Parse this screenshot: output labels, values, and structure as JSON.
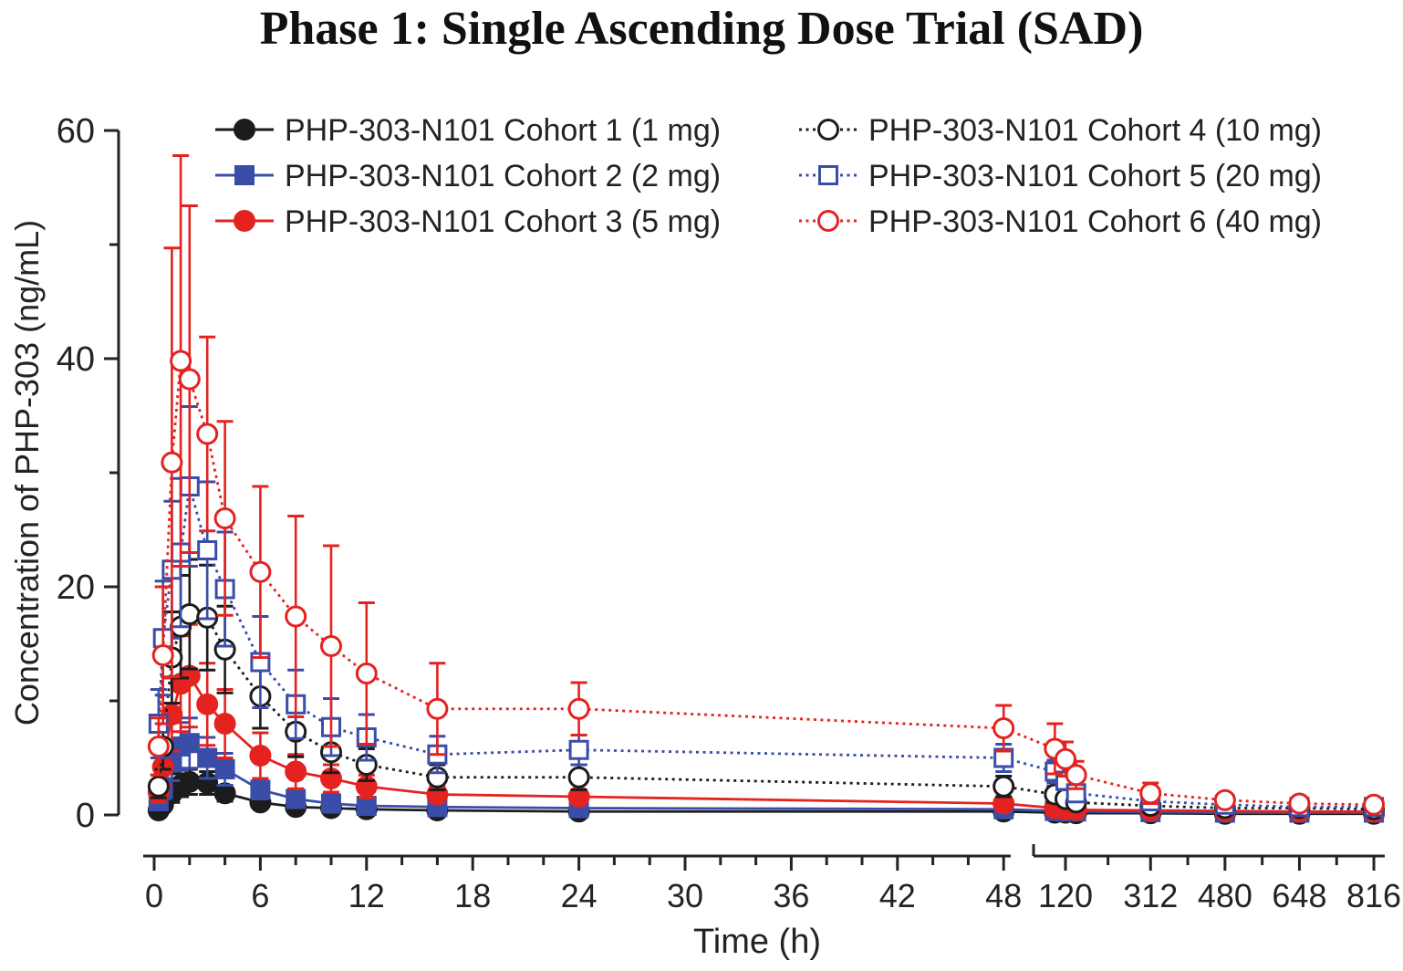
{
  "chart_data": {
    "type": "line",
    "title": "Phase 1: Single Ascending Dose Trial (SAD)",
    "xlabel": "Time (h)",
    "ylabel": "Concentration of PHP-303 (ng/mL)",
    "ylim": [
      0,
      60
    ],
    "y_major_ticks": [
      0,
      20,
      40,
      60
    ],
    "y_minor_ticks": [
      10,
      30,
      50
    ],
    "x_axis_break": true,
    "x_segment1_range": [
      0,
      48
    ],
    "x_segment1_major_ticks": [
      0,
      6,
      12,
      18,
      24,
      30,
      36,
      42,
      48
    ],
    "x_segment1_minor_step": 2,
    "x_segment2_major_ticks": [
      120,
      312,
      480,
      648,
      816
    ],
    "x_segment2_minor_ticks": [
      216,
      396,
      564,
      732
    ],
    "legend_position": "top-inside, two columns",
    "grid": false,
    "x": [
      0.25,
      0.5,
      1,
      1.5,
      2,
      3,
      4,
      6,
      8,
      10,
      12,
      16,
      24,
      48,
      96,
      120,
      144,
      312,
      480,
      648,
      816
    ],
    "series": [
      {
        "name": "PHP-303-N101 Cohort 1 (1 mg)",
        "color": "#1c1c1c",
        "marker": "circle",
        "fill": "solid",
        "line": "solid",
        "values": [
          0.4,
          0.9,
          1.9,
          2.6,
          2.9,
          2.8,
          1.9,
          1.1,
          0.7,
          0.6,
          0.5,
          0.4,
          0.3,
          0.3,
          0.2,
          0.2,
          0.15,
          0.15,
          0.1,
          0.1,
          0.1
        ],
        "errors": [
          0.2,
          0.4,
          0.8,
          1.0,
          1.1,
          1.0,
          0.7,
          0.4,
          0.3,
          0.25,
          0.2,
          0.15,
          0.1,
          0.1,
          0.05,
          0.05,
          0.05,
          0.05,
          0.05,
          0.05,
          0.05
        ]
      },
      {
        "name": "PHP-303-N101 Cohort 2 (2 mg)",
        "color": "#3a4da8",
        "marker": "square",
        "fill": "solid",
        "line": "solid",
        "values": [
          1.2,
          2.3,
          4.6,
          6.0,
          6.3,
          5.0,
          4.0,
          2.2,
          1.4,
          1.0,
          0.8,
          0.7,
          0.6,
          0.5,
          0.35,
          0.3,
          0.3,
          0.25,
          0.2,
          0.2,
          0.2
        ],
        "errors": [
          0.5,
          0.9,
          1.6,
          2.1,
          2.2,
          1.8,
          1.4,
          0.8,
          0.5,
          0.4,
          0.3,
          0.25,
          0.2,
          0.2,
          0.1,
          0.1,
          0.1,
          0.08,
          0.05,
          0.05,
          0.05
        ]
      },
      {
        "name": "PHP-303-N101 Cohort 3 (5 mg)",
        "color": "#e42320",
        "marker": "circle",
        "fill": "solid",
        "line": "solid",
        "values": [
          2.0,
          4.2,
          8.8,
          11.5,
          12.2,
          9.7,
          8.0,
          5.2,
          3.8,
          3.2,
          2.5,
          1.8,
          1.6,
          1.0,
          0.6,
          0.5,
          0.45,
          0.4,
          0.35,
          0.3,
          0.3
        ],
        "errors": [
          0.9,
          1.6,
          3.2,
          4.2,
          4.5,
          3.6,
          3.0,
          2.0,
          1.5,
          1.2,
          1.0,
          0.7,
          0.6,
          0.4,
          0.2,
          0.2,
          0.15,
          0.12,
          0.1,
          0.1,
          0.1
        ]
      },
      {
        "name": "PHP-303-N101 Cohort 4 (10 mg)",
        "color": "#1c1c1c",
        "marker": "circle",
        "fill": "open",
        "line": "dotted",
        "values": [
          2.5,
          6.0,
          13.8,
          16.5,
          17.6,
          17.3,
          14.5,
          10.4,
          7.3,
          5.5,
          4.4,
          3.3,
          3.3,
          2.5,
          1.8,
          1.4,
          1.1,
          0.8,
          0.6,
          0.6,
          0.5
        ],
        "errors": [
          1.0,
          2.0,
          4.0,
          4.5,
          4.8,
          4.6,
          3.8,
          2.8,
          2.2,
          1.8,
          1.4,
          1.1,
          1.1,
          0.9,
          0.7,
          0.6,
          0.5,
          0.3,
          0.25,
          0.2,
          0.2
        ]
      },
      {
        "name": "PHP-303-N101 Cohort 5 (20 mg)",
        "color": "#3a4da8",
        "marker": "square",
        "fill": "open",
        "line": "dotted",
        "values": [
          8.0,
          15.5,
          21.5,
          23.0,
          28.8,
          23.2,
          19.8,
          13.4,
          9.7,
          7.7,
          6.8,
          5.3,
          5.7,
          5.0,
          3.8,
          3.0,
          1.9,
          1.2,
          0.9,
          0.7,
          0.7
        ],
        "errors": [
          3.0,
          5.0,
          6.0,
          6.5,
          7.0,
          6.0,
          5.0,
          4.0,
          3.0,
          2.5,
          2.0,
          1.6,
          1.3,
          1.2,
          1.0,
          0.8,
          0.6,
          0.4,
          0.3,
          0.25,
          0.25
        ]
      },
      {
        "name": "PHP-303-N101 Cohort 6 (40 mg)",
        "color": "#e42320",
        "marker": "circle",
        "fill": "open",
        "line": "dotted",
        "values": [
          6.0,
          14.0,
          30.9,
          39.8,
          38.2,
          33.4,
          26.0,
          21.3,
          17.4,
          14.8,
          12.4,
          9.3,
          9.3,
          7.6,
          5.8,
          4.9,
          3.5,
          1.9,
          1.3,
          1.0,
          0.9
        ],
        "errors": [
          2.5,
          6.0,
          18.8,
          18.0,
          15.2,
          8.5,
          8.5,
          7.5,
          8.8,
          8.8,
          6.2,
          4.0,
          2.3,
          2.0,
          2.2,
          1.5,
          1.2,
          0.9,
          0.5,
          0.3,
          0.3
        ]
      }
    ]
  }
}
